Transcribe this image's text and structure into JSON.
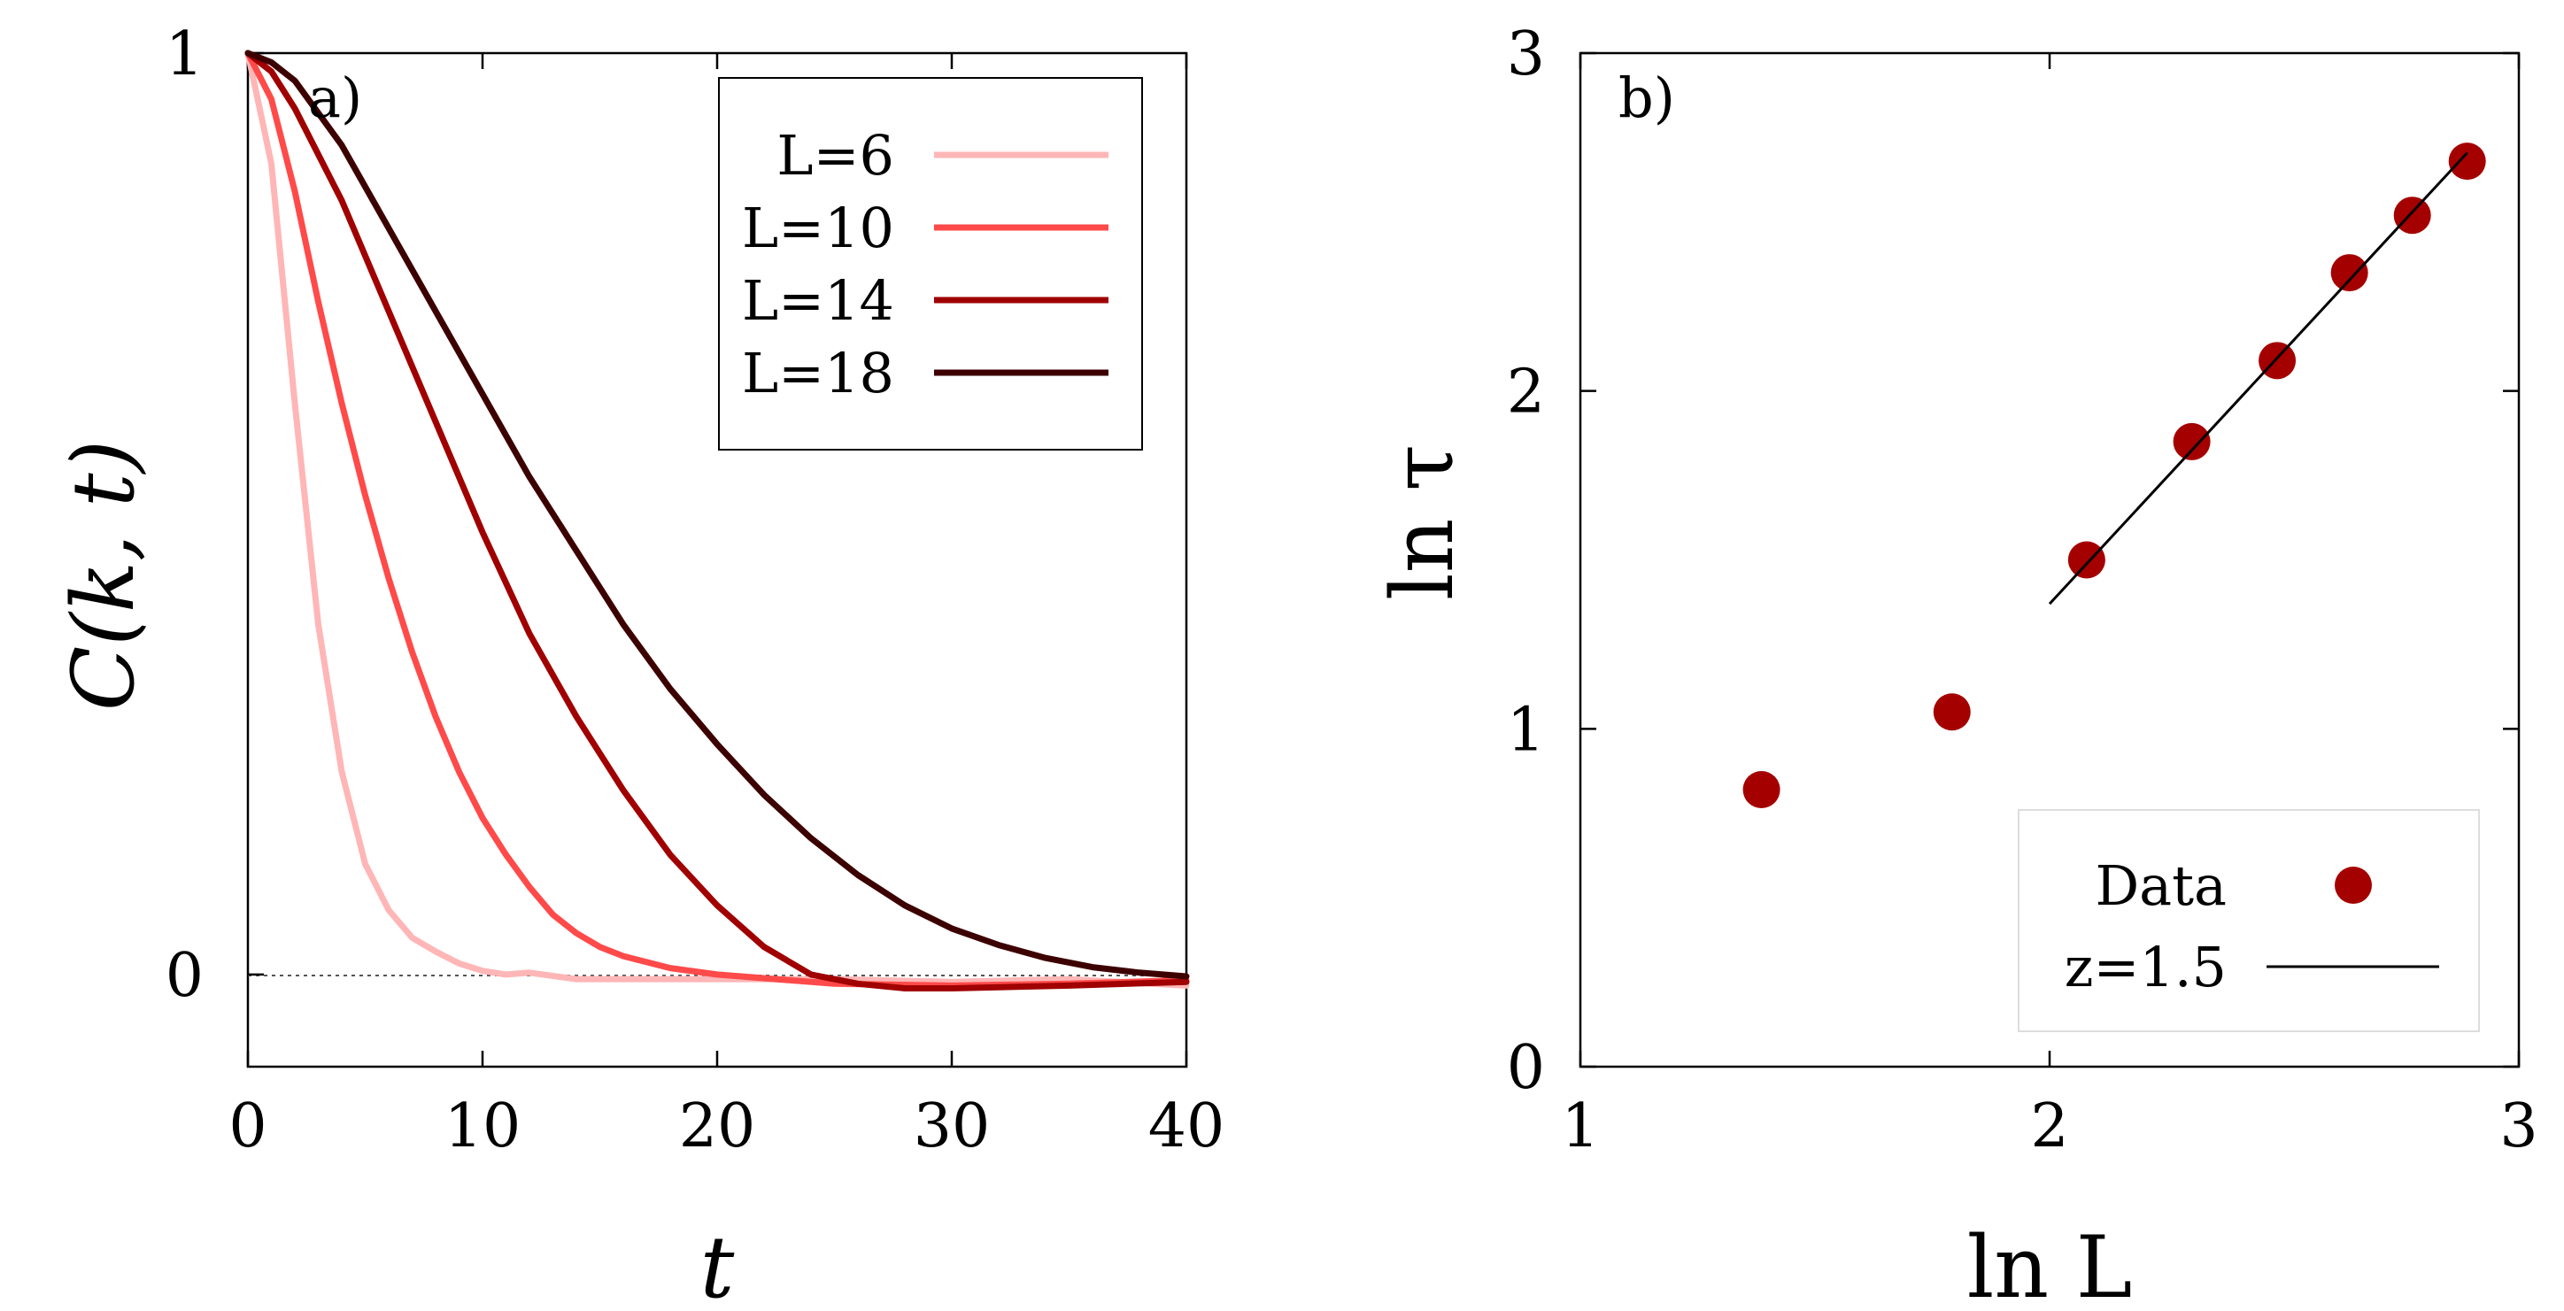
{
  "chart_data": [
    {
      "type": "line",
      "panel_label": "a)",
      "xlabel": "t",
      "ylabel": "C(k, t)",
      "xlim": [
        0,
        40
      ],
      "ylim": [
        -0.1,
        1
      ],
      "xticks": [
        0,
        10,
        20,
        30,
        40
      ],
      "yticks": [
        0,
        1
      ],
      "zero_reference_line": "dotted",
      "legend_placement": "top-right",
      "series": [
        {
          "name": "L=6",
          "color": "#ffb6b6",
          "x": [
            0,
            1,
            2,
            3,
            4,
            5,
            6,
            7,
            8,
            9,
            10,
            11,
            12,
            14,
            16,
            20,
            25,
            30,
            35,
            40
          ],
          "y": [
            1.0,
            0.88,
            0.62,
            0.38,
            0.22,
            0.12,
            0.07,
            0.04,
            0.025,
            0.012,
            0.004,
            0.0,
            0.002,
            -0.005,
            -0.005,
            -0.005,
            -0.005,
            -0.008,
            -0.005,
            -0.012
          ]
        },
        {
          "name": "L=10",
          "color": "#ff4a4a",
          "x": [
            0,
            1,
            2,
            3,
            4,
            5,
            6,
            7,
            8,
            9,
            10,
            11,
            12,
            13,
            14,
            15,
            16,
            18,
            20,
            25,
            30,
            35,
            40
          ],
          "y": [
            1.0,
            0.95,
            0.85,
            0.73,
            0.62,
            0.52,
            0.43,
            0.35,
            0.28,
            0.22,
            0.17,
            0.13,
            0.095,
            0.065,
            0.045,
            0.03,
            0.02,
            0.007,
            0.0,
            -0.01,
            -0.012,
            -0.01,
            -0.006
          ]
        },
        {
          "name": "L=14",
          "color": "#a00000",
          "x": [
            0,
            1,
            2,
            4,
            6,
            8,
            10,
            12,
            14,
            16,
            18,
            20,
            22,
            24,
            26,
            28,
            30,
            35,
            40
          ],
          "y": [
            1.0,
            0.98,
            0.94,
            0.84,
            0.72,
            0.6,
            0.48,
            0.37,
            0.28,
            0.2,
            0.13,
            0.075,
            0.03,
            0.0,
            -0.01,
            -0.015,
            -0.015,
            -0.012,
            -0.008
          ]
        },
        {
          "name": "L=18",
          "color": "#3d0000",
          "x": [
            0,
            1,
            2,
            4,
            6,
            8,
            10,
            12,
            14,
            16,
            18,
            20,
            22,
            24,
            26,
            28,
            30,
            32,
            34,
            36,
            38,
            40
          ],
          "y": [
            1.0,
            0.99,
            0.97,
            0.9,
            0.81,
            0.72,
            0.63,
            0.54,
            0.46,
            0.38,
            0.31,
            0.25,
            0.195,
            0.148,
            0.108,
            0.075,
            0.05,
            0.032,
            0.018,
            0.008,
            0.002,
            -0.002
          ]
        }
      ]
    },
    {
      "type": "scatter",
      "panel_label": "b)",
      "xlabel": "ln L",
      "ylabel": "ln τ",
      "xlim": [
        1,
        3
      ],
      "ylim": [
        0,
        3
      ],
      "xticks": [
        1,
        2,
        3
      ],
      "yticks": [
        0,
        1,
        2,
        3
      ],
      "legend_placement": "bottom-right",
      "series": [
        {
          "name": "Data",
          "color": "#a50000",
          "x": [
            1.386,
            1.792,
            2.079,
            2.303,
            2.485,
            2.639,
            2.773,
            2.89
          ],
          "y": [
            0.82,
            1.05,
            1.5,
            1.85,
            2.09,
            2.35,
            2.52,
            2.68
          ]
        },
        {
          "name": "z=1.5",
          "color": "#000000",
          "type": "line",
          "x": [
            2.0,
            2.89
          ],
          "y": [
            1.37,
            2.705
          ]
        }
      ]
    }
  ]
}
